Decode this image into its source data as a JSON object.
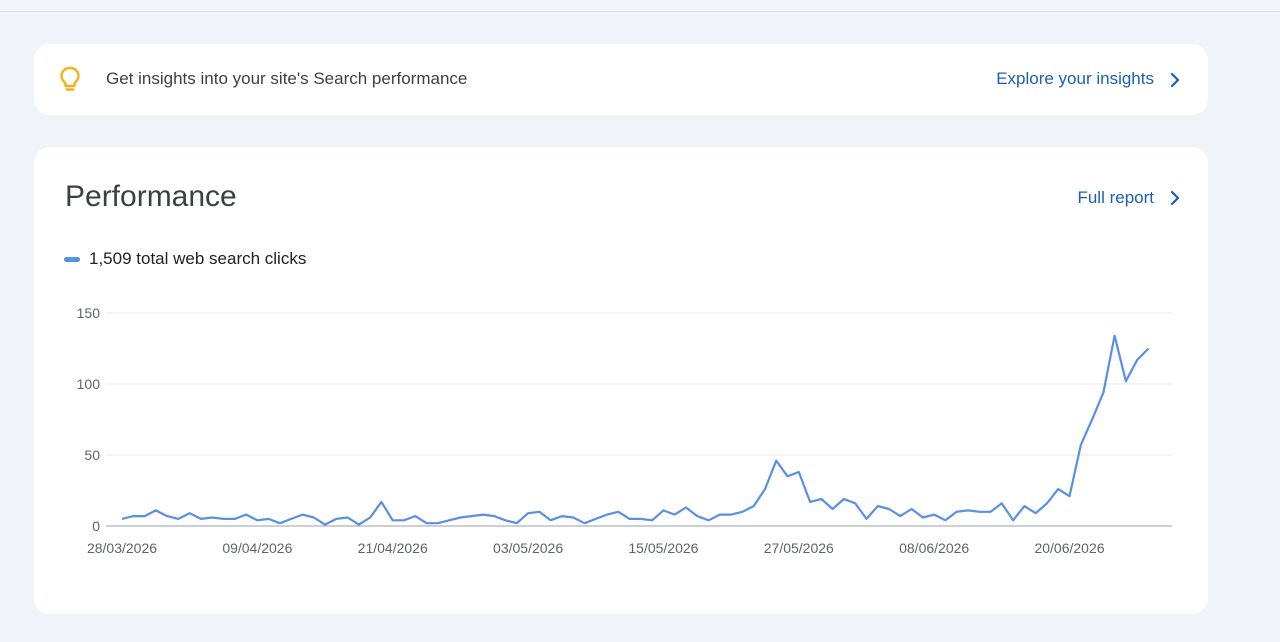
{
  "insights_banner": {
    "text": "Get insights into your site's Search performance",
    "link_label": "Explore your insights",
    "icon": "lightbulb-icon"
  },
  "performance": {
    "title": "Performance",
    "full_report_label": "Full report",
    "legend_label": "1,509 total web search clicks",
    "series_color": "#5b8fe0"
  },
  "chart_data": {
    "type": "line",
    "title": "",
    "xlabel": "",
    "ylabel": "",
    "ylim": [
      0,
      150
    ],
    "y_ticks": [
      "0",
      "50",
      "100",
      "150"
    ],
    "x_tick_labels": [
      "28/03/2026",
      "09/04/2026",
      "21/04/2026",
      "03/05/2026",
      "15/05/2026",
      "27/05/2026",
      "08/06/2026",
      "20/06/2026"
    ],
    "x_tick_indices": [
      0,
      12,
      24,
      36,
      48,
      60,
      72,
      84
    ],
    "grid": true,
    "series": [
      {
        "name": "1,509 total web search clicks",
        "values": [
          5,
          7,
          7,
          11,
          7,
          5,
          9,
          5,
          6,
          5,
          5,
          8,
          4,
          5,
          2,
          5,
          8,
          6,
          1,
          5,
          6,
          1,
          6,
          17,
          4,
          4,
          7,
          2,
          2,
          4,
          6,
          7,
          8,
          7,
          4,
          2,
          9,
          10,
          4,
          7,
          6,
          2,
          5,
          8,
          10,
          5,
          5,
          4,
          11,
          8,
          13,
          7,
          4,
          8,
          8,
          10,
          14,
          26,
          46,
          35,
          38,
          17,
          19,
          12,
          19,
          16,
          5,
          14,
          12,
          7,
          12,
          6,
          8,
          4,
          10,
          11,
          10,
          10,
          16,
          4,
          14,
          9,
          16,
          26,
          21,
          57,
          75,
          94,
          134,
          102,
          117,
          125
        ]
      }
    ]
  }
}
